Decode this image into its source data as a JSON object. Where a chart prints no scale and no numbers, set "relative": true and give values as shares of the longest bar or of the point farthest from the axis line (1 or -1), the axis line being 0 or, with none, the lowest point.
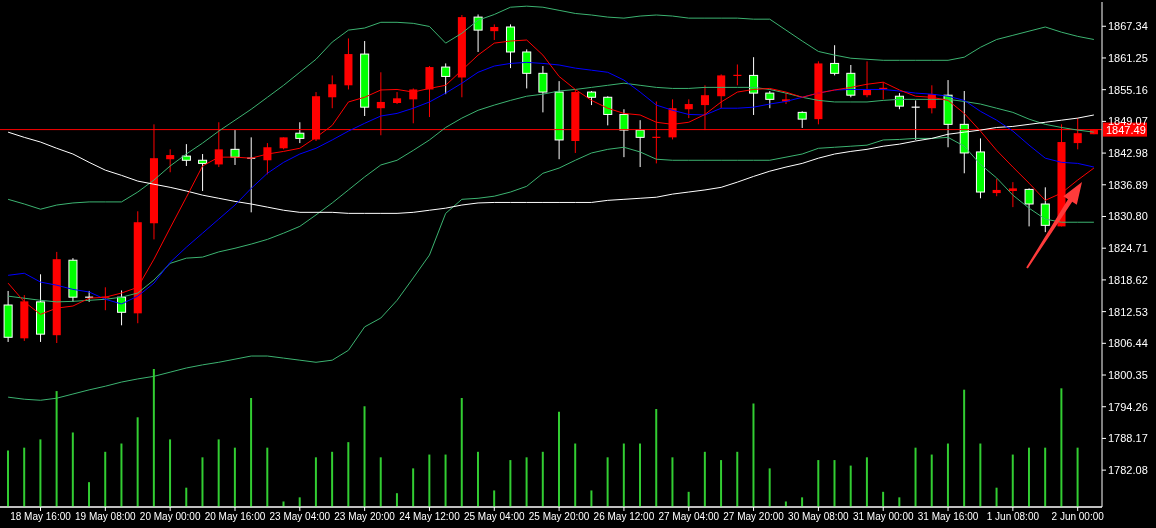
{
  "chart_data": [
    {
      "type": "candlestick",
      "categories": [
        null,
        null,
        "18 May 16:00",
        null,
        null,
        null,
        "19 May 08:00",
        null,
        null,
        null,
        "20 May 00:00",
        null,
        null,
        null,
        "20 May 16:00",
        null,
        null,
        null,
        "23 May 04:00",
        null,
        null,
        null,
        "23 May 20:00",
        null,
        null,
        null,
        "24 May 12:00",
        null,
        null,
        null,
        "25 May 04:00",
        null,
        null,
        null,
        "25 May 20:00",
        null,
        null,
        null,
        "26 May 12:00",
        null,
        null,
        null,
        "27 May 04:00",
        null,
        null,
        null,
        "27 May 20:00",
        null,
        null,
        null,
        "30 May 08:00",
        null,
        null,
        null,
        "31 May 00:00",
        null,
        null,
        null,
        "31 May 16:00",
        null,
        null,
        null,
        "1 Jun 08:00",
        null,
        null,
        null,
        "2 Jun 00:00",
        null
      ],
      "ohlc": [
        [
          1813.8,
          1816.5,
          1806.7,
          1807.6
        ],
        [
          1807.4,
          1815.7,
          1806.9,
          1814.5
        ],
        [
          1814.4,
          1819.7,
          1806.7,
          1808.2
        ],
        [
          1808.0,
          1824.0,
          1806.5,
          1822.6
        ],
        [
          1822.4,
          1822.8,
          1814.4,
          1815.3
        ],
        [
          1815.3,
          1816.5,
          1814.4,
          1815.3
        ],
        [
          1815.3,
          1817.2,
          1812.8,
          1815.3
        ],
        [
          1815.3,
          1816.6,
          1809.9,
          1812.4
        ],
        [
          1812.2,
          1831.8,
          1810.3,
          1829.7
        ],
        [
          1829.5,
          1848.5,
          1826.4,
          1842.0
        ],
        [
          1841.8,
          1843.7,
          1839.3,
          1842.6
        ],
        [
          1842.4,
          1844.7,
          1840.5,
          1841.6
        ],
        [
          1841.6,
          1842.8,
          1835.7,
          1841.0
        ],
        [
          1840.8,
          1848.9,
          1840.3,
          1843.7
        ],
        [
          1843.7,
          1847.4,
          1840.7,
          1842.2
        ],
        [
          1842.0,
          1846.0,
          1831.6,
          1842.0
        ],
        [
          1841.6,
          1844.9,
          1838.9,
          1844.1
        ],
        [
          1843.9,
          1846.0,
          1843.7,
          1846.0
        ],
        [
          1846.8,
          1848.9,
          1844.9,
          1845.8
        ],
        [
          1845.6,
          1854.7,
          1845.3,
          1853.9
        ],
        [
          1853.7,
          1857.9,
          1851.6,
          1856.2
        ],
        [
          1856.0,
          1865.0,
          1855.2,
          1862.0
        ],
        [
          1862.0,
          1864.5,
          1850.1,
          1851.8
        ],
        [
          1851.6,
          1858.5,
          1846.4,
          1852.8
        ],
        [
          1852.6,
          1854.7,
          1852.4,
          1853.5
        ],
        [
          1853.3,
          1855.4,
          1848.7,
          1855.2
        ],
        [
          1855.2,
          1859.7,
          1849.9,
          1859.5
        ],
        [
          1859.5,
          1860.2,
          1854.3,
          1857.7
        ],
        [
          1857.5,
          1869.5,
          1853.7,
          1869.1
        ],
        [
          1869.1,
          1869.6,
          1862.4,
          1866.6
        ],
        [
          1866.4,
          1867.7,
          1864.7,
          1867.2
        ],
        [
          1867.2,
          1867.7,
          1859.3,
          1862.4
        ],
        [
          1862.4,
          1862.9,
          1855.4,
          1858.3
        ],
        [
          1858.3,
          1859.7,
          1850.8,
          1854.7
        ],
        [
          1854.7,
          1856.8,
          1841.8,
          1845.5
        ],
        [
          1845.3,
          1855.1,
          1843.0,
          1854.7
        ],
        [
          1854.7,
          1854.9,
          1852.2,
          1853.7
        ],
        [
          1853.7,
          1853.9,
          1848.3,
          1850.4
        ],
        [
          1850.4,
          1851.4,
          1842.2,
          1847.4
        ],
        [
          1847.4,
          1849.3,
          1840.3,
          1846.0
        ],
        [
          1846.0,
          1852.9,
          1841.0,
          1846.0
        ],
        [
          1846.0,
          1853.3,
          1845.6,
          1851.6
        ],
        [
          1851.4,
          1853.3,
          1849.7,
          1852.4
        ],
        [
          1852.2,
          1856.0,
          1847.4,
          1854.1
        ],
        [
          1853.9,
          1858.1,
          1851.6,
          1857.9
        ],
        [
          1857.9,
          1860.0,
          1856.0,
          1857.9
        ],
        [
          1857.9,
          1861.4,
          1850.3,
          1854.5
        ],
        [
          1854.5,
          1854.9,
          1851.6,
          1853.3
        ],
        [
          1852.9,
          1854.5,
          1852.4,
          1853.3
        ],
        [
          1850.8,
          1851.0,
          1847.8,
          1849.5
        ],
        [
          1849.5,
          1860.6,
          1848.5,
          1860.2
        ],
        [
          1860.2,
          1863.7,
          1857.9,
          1858.3
        ],
        [
          1858.3,
          1859.9,
          1853.7,
          1854.1
        ],
        [
          1854.1,
          1860.6,
          1853.7,
          1855.2
        ],
        [
          1855.4,
          1856.6,
          1853.3,
          1855.4
        ],
        [
          1853.9,
          1854.5,
          1851.4,
          1852.0
        ],
        [
          1851.8,
          1853.1,
          1845.5,
          1851.8
        ],
        [
          1851.6,
          1856.0,
          1850.6,
          1854.3
        ],
        [
          1854.1,
          1857.0,
          1844.1,
          1848.5
        ],
        [
          1848.5,
          1854.9,
          1839.1,
          1843.0
        ],
        [
          1843.2,
          1845.8,
          1834.3,
          1835.5
        ],
        [
          1835.3,
          1838.0,
          1834.7,
          1835.9
        ],
        [
          1835.7,
          1837.4,
          1832.6,
          1836.2
        ],
        [
          1836.0,
          1836.2,
          1828.9,
          1833.2
        ],
        [
          1833.2,
          1836.4,
          1827.8,
          1829.1
        ],
        [
          1828.9,
          1848.5,
          1828.9,
          1845.1
        ],
        [
          1844.9,
          1849.7,
          1843.7,
          1846.8
        ],
        [
          1846.6,
          1847.5,
          1846.6,
          1847.49
        ]
      ],
      "colors": [
        "#00ff00",
        "#ff0000",
        "#00ff00",
        "#ff0000",
        "#00ff00",
        "#ffffff",
        "#ff0000",
        "#00ff00",
        "#ff0000",
        "#ff0000",
        "#ff0000",
        "#00ff00",
        "#00ff00",
        "#ff0000",
        "#00ff00",
        "#ffffff",
        "#ff0000",
        "#ff0000",
        "#00ff00",
        "#ff0000",
        "#ff0000",
        "#ff0000",
        "#00ff00",
        "#ff0000",
        "#ff0000",
        "#ff0000",
        "#ff0000",
        "#00ff00",
        "#ff0000",
        "#00ff00",
        "#ff0000",
        "#00ff00",
        "#00ff00",
        "#00ff00",
        "#00ff00",
        "#ff0000",
        "#00ff00",
        "#00ff00",
        "#00ff00",
        "#00ff00",
        "#ff0000",
        "#ff0000",
        "#ff0000",
        "#ff0000",
        "#ff0000",
        "#ff0000",
        "#00ff00",
        "#00ff00",
        "#ff0000",
        "#00ff00",
        "#ff0000",
        "#00ff00",
        "#00ff00",
        "#ff0000",
        "#ff0000",
        "#00ff00",
        "#ffffff",
        "#ff0000",
        "#00ff00",
        "#00ff00",
        "#00ff00",
        "#ff0000",
        "#ff0000",
        "#00ff00",
        "#00ff00",
        "#ff0000",
        "#ff0000",
        "#ff0000"
      ],
      "series": [
        {
          "type": "line",
          "color": "#3cb371",
          "values": [
            1834.1,
            1833.2,
            1832.2,
            1833.0,
            1833.4,
            1833.6,
            1833.6,
            1833.6,
            1835.5,
            1837.8,
            1840.5,
            1842.8,
            1844.9,
            1847.2,
            1849.3,
            1851.4,
            1853.7,
            1856.0,
            1858.5,
            1861.0,
            1864.3,
            1866.6,
            1867.0,
            1868.1,
            1868.1,
            1867.9,
            1867.3,
            1864.1,
            1866.0,
            1868.5,
            1869.6,
            1871.0,
            1871.2,
            1871.0,
            1870.4,
            1869.8,
            1869.5,
            1869.1,
            1868.9,
            1869.3,
            1869.5,
            1869.3,
            1868.9,
            1868.9,
            1868.9,
            1868.9,
            1868.7,
            1868.7,
            1866.6,
            1864.5,
            1862.5,
            1861.8,
            1861.2,
            1861.0,
            1860.8,
            1860.8,
            1860.8,
            1860.8,
            1860.8,
            1861.4,
            1863.3,
            1864.8,
            1865.6,
            1866.4,
            1867.2,
            1866.2,
            1865.4,
            1864.8
          ]
        },
        {
          "type": "line",
          "color": "#3cb371",
          "values": [
            1815.5,
            1815.1,
            1814.7,
            1814.4,
            1814.5,
            1814.7,
            1814.9,
            1815.3,
            1816.1,
            1818.6,
            1821.8,
            1822.8,
            1823.0,
            1824.0,
            1824.7,
            1825.5,
            1826.4,
            1827.6,
            1828.9,
            1831.1,
            1833.4,
            1835.9,
            1838.4,
            1840.7,
            1841.6,
            1843.5,
            1845.5,
            1847.9,
            1849.7,
            1851.2,
            1852.2,
            1853.1,
            1853.9,
            1854.3,
            1854.9,
            1855.2,
            1855.6,
            1856.0,
            1856.4,
            1856.0,
            1855.6,
            1855.4,
            1855.4,
            1855.6,
            1855.6,
            1855.6,
            1855.6,
            1855.2,
            1854.5,
            1853.7,
            1853.1,
            1852.8,
            1852.8,
            1852.8,
            1853.1,
            1853.3,
            1853.3,
            1853.3,
            1853.3,
            1852.9,
            1852.4,
            1851.6,
            1850.8,
            1849.5,
            1848.5,
            1847.9,
            1847.4,
            1847.0
          ]
        },
        {
          "type": "line",
          "color": "#3cb371",
          "values": [
            1796.1,
            1795.7,
            1795.5,
            1795.9,
            1796.7,
            1797.5,
            1798.2,
            1799.0,
            1799.6,
            1800.1,
            1800.9,
            1801.7,
            1802.3,
            1802.8,
            1803.4,
            1804.0,
            1804.0,
            1803.6,
            1803.2,
            1802.8,
            1803.2,
            1805.1,
            1809.6,
            1811.3,
            1814.7,
            1819.0,
            1823.4,
            1831.4,
            1834.1,
            1834.3,
            1834.7,
            1835.5,
            1836.6,
            1839.1,
            1840.1,
            1841.6,
            1843.0,
            1843.7,
            1844.1,
            1843.2,
            1841.8,
            1841.6,
            1841.6,
            1841.6,
            1841.6,
            1841.6,
            1841.6,
            1841.6,
            1842.2,
            1842.8,
            1843.9,
            1844.1,
            1844.3,
            1844.5,
            1845.5,
            1845.6,
            1845.8,
            1845.8,
            1846.0,
            1844.3,
            1840.8,
            1838.2,
            1834.9,
            1832.4,
            1830.3,
            1829.7,
            1829.7,
            1829.7
          ]
        },
        {
          "type": "line",
          "color": "#ffffff",
          "values": [
            1847.0,
            1846.0,
            1845.1,
            1843.9,
            1842.8,
            1841.2,
            1839.7,
            1838.7,
            1837.6,
            1837.0,
            1836.4,
            1835.7,
            1834.9,
            1834.3,
            1833.7,
            1833.2,
            1832.6,
            1832.0,
            1831.6,
            1831.6,
            1831.6,
            1831.4,
            1831.4,
            1831.4,
            1831.4,
            1831.6,
            1832.0,
            1832.4,
            1833.0,
            1833.4,
            1833.5,
            1833.5,
            1833.5,
            1833.5,
            1833.5,
            1833.5,
            1833.5,
            1833.9,
            1834.1,
            1834.3,
            1834.5,
            1835.1,
            1835.5,
            1835.9,
            1836.4,
            1837.4,
            1838.5,
            1839.5,
            1840.3,
            1841.0,
            1842.0,
            1842.8,
            1843.3,
            1843.7,
            1844.3,
            1844.7,
            1845.3,
            1845.8,
            1846.6,
            1847.0,
            1847.4,
            1847.9,
            1848.1,
            1848.5,
            1848.9,
            1849.3,
            1849.7,
            1850.3
          ]
        },
        {
          "type": "line",
          "color": "#0000ff",
          "values": [
            1819.5,
            1819.9,
            1818.2,
            1817.6,
            1816.8,
            1816.3,
            1814.9,
            1814.0,
            1815.5,
            1818.0,
            1822.0,
            1824.9,
            1827.6,
            1830.3,
            1833.0,
            1836.2,
            1839.1,
            1841.2,
            1842.8,
            1843.9,
            1845.5,
            1847.2,
            1848.7,
            1850.1,
            1850.6,
            1851.6,
            1852.8,
            1854.5,
            1856.4,
            1858.5,
            1859.7,
            1860.2,
            1860.4,
            1860.2,
            1859.9,
            1859.3,
            1858.9,
            1858.5,
            1857.0,
            1854.7,
            1852.2,
            1851.2,
            1850.4,
            1850.3,
            1851.6,
            1851.6,
            1851.8,
            1852.4,
            1852.9,
            1853.7,
            1854.5,
            1855.1,
            1855.2,
            1855.2,
            1855.2,
            1854.9,
            1854.5,
            1854.3,
            1853.9,
            1853.1,
            1851.0,
            1849.3,
            1847.2,
            1844.5,
            1842.0,
            1841.2,
            1841.0,
            1840.3
          ]
        },
        {
          "type": "line",
          "color": "#ff0000",
          "values": [
            1818.0,
            1814.4,
            1812.0,
            1813.2,
            1813.6,
            1815.1,
            1815.3,
            1816.1,
            1817.2,
            1822.6,
            1828.6,
            1834.5,
            1840.5,
            1842.2,
            1842.2,
            1842.0,
            1842.8,
            1843.3,
            1843.9,
            1846.0,
            1848.3,
            1852.8,
            1853.7,
            1855.1,
            1855.2,
            1854.7,
            1855.4,
            1856.0,
            1858.9,
            1861.8,
            1864.1,
            1864.5,
            1864.7,
            1861.8,
            1857.7,
            1855.2,
            1853.1,
            1851.6,
            1850.6,
            1850.3,
            1848.9,
            1848.5,
            1848.9,
            1850.4,
            1852.8,
            1854.7,
            1855.2,
            1855.4,
            1854.7,
            1853.7,
            1854.5,
            1855.1,
            1855.6,
            1856.2,
            1856.6,
            1855.1,
            1853.9,
            1853.7,
            1853.1,
            1850.6,
            1847.2,
            1843.5,
            1840.3,
            1837.2,
            1833.9,
            1835.3,
            1837.8,
            1840.1
          ]
        }
      ],
      "ylim": [
        1775,
        1872
      ],
      "yticks": [
        1867.34,
        1861.25,
        1855.16,
        1849.07,
        1842.98,
        1836.89,
        {
          "value": 1830.8,
          "label": "1830.80"
        },
        1824.71,
        1818.62,
        1812.53,
        1806.44,
        1800.35,
        1794.26,
        1788.17,
        1782.08
      ],
      "ref_lines": [
        {
          "axis": "y",
          "value": 1847.49,
          "label": "1847.49",
          "color": "#ff0000"
        }
      ]
    },
    {
      "type": "bar",
      "relative": true,
      "color": "#32cd32",
      "categories": [
        null,
        null,
        null,
        null,
        null,
        null,
        null,
        null,
        null,
        null,
        null,
        null,
        null,
        null,
        null,
        null,
        null,
        null,
        null,
        null,
        null,
        null,
        null,
        null,
        null,
        null,
        null,
        null,
        null,
        null,
        null,
        null,
        null,
        null,
        null,
        null,
        null,
        null,
        null,
        null,
        null,
        null,
        null,
        null,
        null,
        null,
        null,
        null,
        null,
        null,
        null,
        null,
        null,
        null,
        null,
        null,
        null,
        null,
        null,
        null,
        null,
        null,
        null,
        null,
        null,
        null,
        null,
        null
      ],
      "values": [
        0.41,
        0.43,
        0.49,
        0.84,
        0.54,
        0.18,
        0.4,
        0.46,
        0.65,
        1,
        0.49,
        0.14,
        0.36,
        0.49,
        0.43,
        0.79,
        0.43,
        0.04,
        0.07,
        0.36,
        0.4,
        0.47,
        0.73,
        0.36,
        0.1,
        0.28,
        0.38,
        0.38,
        0.79,
        0.4,
        0.12,
        0.34,
        0.36,
        0.4,
        0.69,
        0.46,
        0.12,
        0.36,
        0.46,
        0.46,
        0.71,
        0.36,
        0.11,
        0.4,
        0.34,
        0.4,
        0.75,
        0.28,
        0.04,
        0.07,
        0.34,
        0.34,
        0.3,
        0.36,
        0.11,
        0.07,
        0.43,
        0.38,
        0.46,
        0.85,
        0.46,
        0.14,
        0.38,
        0.43,
        0.43,
        0.86,
        0.43,
        null
      ]
    }
  ]
}
